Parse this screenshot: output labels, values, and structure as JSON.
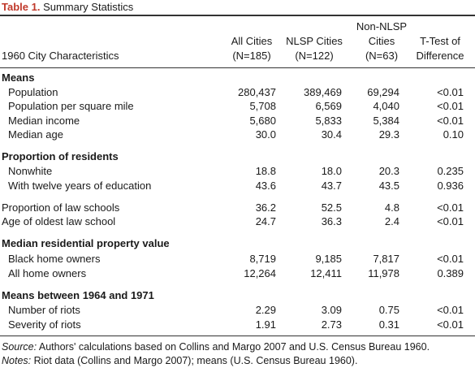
{
  "title": {
    "label": "Table 1.",
    "text": " Summary Statistics"
  },
  "header": {
    "row_label": "1960 City Characteristics",
    "columns": [
      {
        "line1": "",
        "line2": "All Cities",
        "line3": "(N=185)"
      },
      {
        "line1": "",
        "line2": "NLSP Cities",
        "line3": "(N=122)"
      },
      {
        "line1": "Non-NLSP",
        "line2": "Cities",
        "line3": "(N=63)"
      },
      {
        "line1": "",
        "line2": "T-Test of",
        "line3": "Difference"
      }
    ]
  },
  "rows": [
    {
      "kind": "section",
      "label": "Means"
    },
    {
      "kind": "data",
      "indent": true,
      "label": "Population",
      "values": [
        "280,437",
        "389,469",
        "69,294",
        "<0.01"
      ]
    },
    {
      "kind": "data",
      "indent": true,
      "label": "Population per square mile",
      "values": [
        "5,708",
        "6,569",
        "4,040",
        "<0.01"
      ]
    },
    {
      "kind": "data",
      "indent": true,
      "label": "Median income",
      "values": [
        "5,680",
        "5,833",
        "5,384",
        "<0.01"
      ]
    },
    {
      "kind": "data",
      "indent": true,
      "label": "Median age",
      "values": [
        "30.0",
        "30.4",
        "29.3",
        "0.10"
      ]
    },
    {
      "kind": "section",
      "label": "Proportion of residents"
    },
    {
      "kind": "data",
      "indent": true,
      "label": "Nonwhite",
      "values": [
        "18.8",
        "18.0",
        "20.3",
        "0.235"
      ]
    },
    {
      "kind": "data",
      "indent": true,
      "label": "With twelve years of education",
      "values": [
        "43.6",
        "43.7",
        "43.5",
        "0.936"
      ]
    },
    {
      "kind": "data",
      "indent": false,
      "label": "Proportion of law schools",
      "values": [
        "36.2",
        "52.5",
        "4.8",
        "<0.01"
      ]
    },
    {
      "kind": "data",
      "indent": false,
      "label": "Age of oldest law school",
      "values": [
        "24.7",
        "36.3",
        "2.4",
        "<0.01"
      ]
    },
    {
      "kind": "section",
      "label": "Median residential property value"
    },
    {
      "kind": "data",
      "indent": true,
      "label": "Black home owners",
      "values": [
        "8,719",
        "9,185",
        "7,817",
        "<0.01"
      ]
    },
    {
      "kind": "data",
      "indent": true,
      "label": "All home owners",
      "values": [
        "12,264",
        "12,411",
        "11,978",
        "0.389"
      ]
    },
    {
      "kind": "section",
      "label": "Means between 1964 and 1971"
    },
    {
      "kind": "data",
      "indent": true,
      "label": "Number of riots",
      "values": [
        "2.29",
        "3.09",
        "0.75",
        "<0.01"
      ]
    },
    {
      "kind": "data",
      "indent": true,
      "label": "Severity of riots",
      "values": [
        "1.91",
        "2.73",
        "0.31",
        "<0.01"
      ]
    }
  ],
  "notes": {
    "source_label": "Source:",
    "source_text": " Authors' calculations based on Collins and Margo 2007 and U.S. Census Bureau 1960.",
    "notes_label": "Notes:",
    "notes_text": " Riot data (Collins and Margo 2007); means (U.S. Census Bureau 1960)."
  }
}
